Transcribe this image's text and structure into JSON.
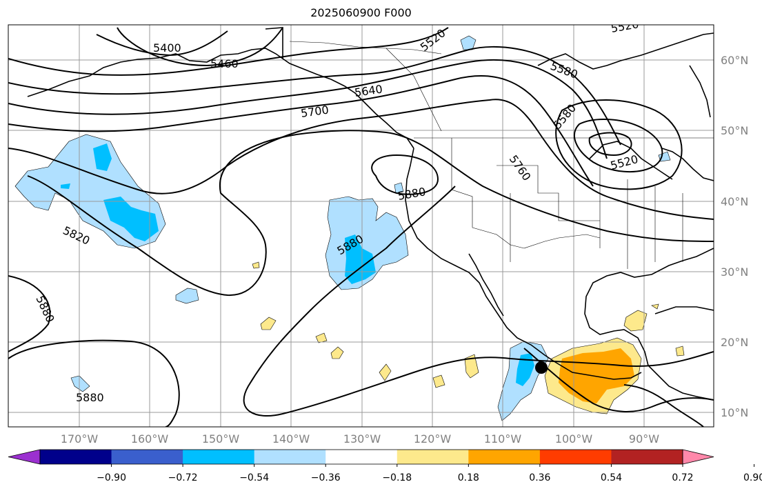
{
  "title": "2025060900 F000",
  "latitude_labels": [
    "60°N",
    "50°N",
    "40°N",
    "30°N",
    "20°N",
    "10°N"
  ],
  "longitude_labels": [
    "170°W",
    "160°W",
    "150°W",
    "140°W",
    "130°W",
    "120°W",
    "110°W",
    "100°W",
    "90°W"
  ],
  "colorbar": {
    "ticks": [
      "−0.90",
      "−0.72",
      "−0.54",
      "−0.36",
      "−0.18",
      "0.18",
      "0.36",
      "0.54",
      "0.72",
      "0.90"
    ],
    "colors": [
      "#9b30d0",
      "#00008b",
      "#3a5fcd",
      "#00bfff",
      "#b0e0ff",
      "#ffffff",
      "#fde98c",
      "#ffa500",
      "#ff3c00",
      "#b22222",
      "#ff88aa"
    ]
  },
  "contour_labels": [
    "5400",
    "5460",
    "5520",
    "5520",
    "5580",
    "5580",
    "5640",
    "5700",
    "5760",
    "5520",
    "5820",
    "5880",
    "5880",
    "5880",
    "5880"
  ],
  "marker": "storm-center"
}
